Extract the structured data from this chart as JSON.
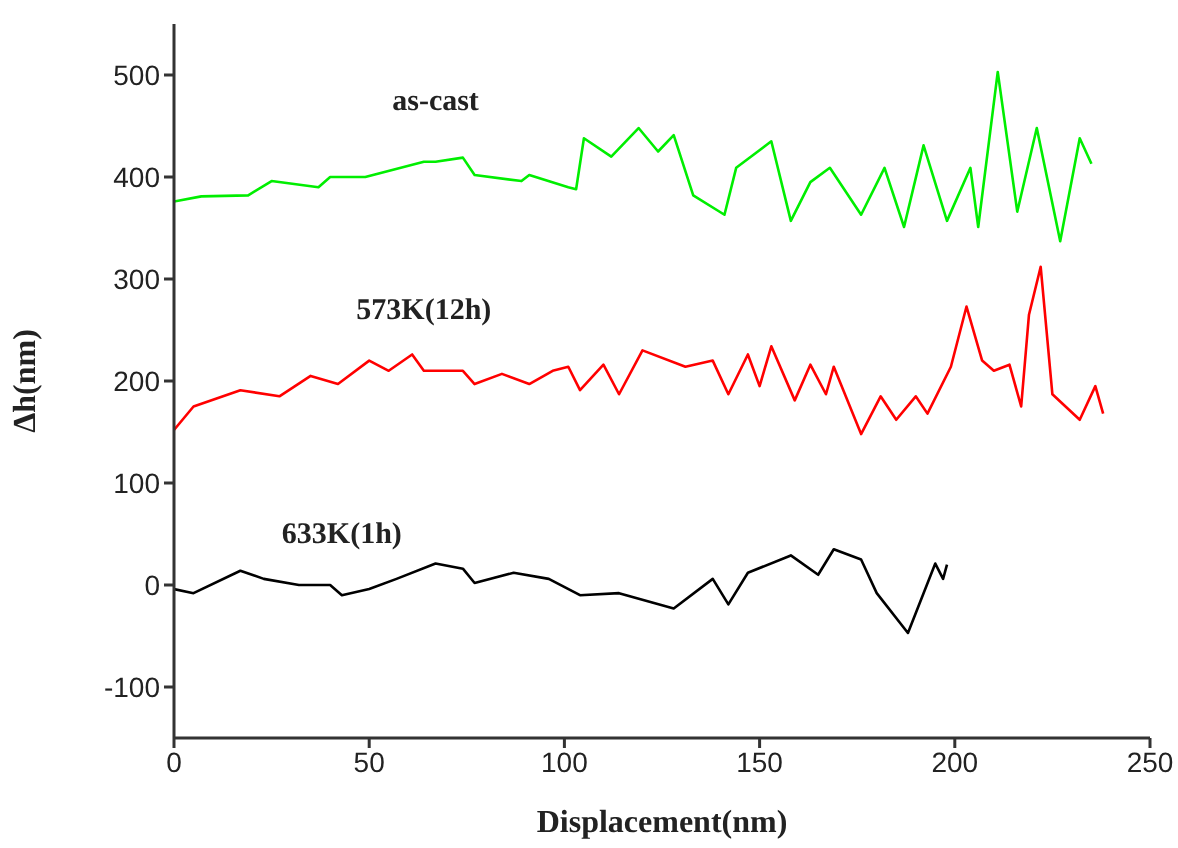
{
  "chart_data": {
    "type": "line",
    "xlabel": "Displacement(nm)",
    "ylabel": "Δh(nm)",
    "xlim": [
      0,
      250
    ],
    "xticks": [
      0,
      50,
      100,
      150,
      200,
      250
    ],
    "ylim": [
      -150,
      550
    ],
    "yticks": [
      -100,
      0,
      100,
      200,
      300,
      400,
      500
    ],
    "grid": false,
    "legend": false,
    "marker": "none",
    "line_style": "solid",
    "series": [
      {
        "name": "as-cast",
        "color": "#00ee00",
        "x": [
          0,
          7,
          19,
          25,
          37,
          40,
          49,
          64,
          67,
          74,
          77,
          89,
          91,
          101,
          103,
          105,
          112,
          119,
          124,
          128,
          133,
          141,
          144,
          153,
          158,
          163,
          168,
          176,
          182,
          187,
          192,
          198,
          204,
          206,
          211,
          216,
          221,
          227,
          232,
          235
        ],
        "values": [
          376,
          381,
          382,
          396,
          390,
          400,
          400,
          415,
          415,
          419,
          402,
          396,
          402,
          390,
          388,
          438,
          420,
          448,
          425,
          441,
          382,
          363,
          409,
          435,
          357,
          395,
          409,
          363,
          409,
          351,
          431,
          357,
          409,
          351,
          503,
          366,
          448,
          337,
          438,
          413
        ]
      },
      {
        "name": "573K(12h)",
        "color": "#ff0000",
        "x": [
          0,
          5,
          17,
          27,
          35,
          42,
          50,
          55,
          61,
          64,
          74,
          77,
          84,
          91,
          97,
          101,
          104,
          110,
          114,
          120,
          131,
          138,
          142,
          147,
          150,
          153,
          159,
          163,
          167,
          169,
          176,
          181,
          185,
          190,
          193,
          199,
          203,
          207,
          210,
          214,
          217,
          219,
          222,
          225,
          232,
          236,
          238
        ],
        "values": [
          152,
          175,
          191,
          185,
          205,
          197,
          220,
          210,
          226,
          210,
          210,
          197,
          207,
          197,
          210,
          214,
          191,
          216,
          187,
          230,
          214,
          220,
          187,
          226,
          195,
          234,
          181,
          216,
          187,
          214,
          148,
          185,
          162,
          185,
          168,
          214,
          273,
          220,
          210,
          216,
          175,
          265,
          312,
          187,
          162,
          195,
          168
        ]
      },
      {
        "name": "633K(1h)",
        "color": "#000000",
        "x": [
          0,
          5,
          17,
          23,
          32,
          40,
          43,
          50,
          57,
          67,
          74,
          77,
          87,
          96,
          104,
          114,
          128,
          138,
          142,
          147,
          158,
          165,
          169,
          176,
          180,
          188,
          192,
          195,
          197,
          198
        ],
        "values": [
          -4,
          -8,
          14,
          6,
          0,
          0,
          -10,
          -4,
          6,
          21,
          16,
          2,
          12,
          6,
          -10,
          -8,
          -23,
          6,
          -19,
          12,
          29,
          10,
          35,
          25,
          -8,
          -47,
          -8,
          21,
          6,
          20
        ]
      }
    ]
  }
}
